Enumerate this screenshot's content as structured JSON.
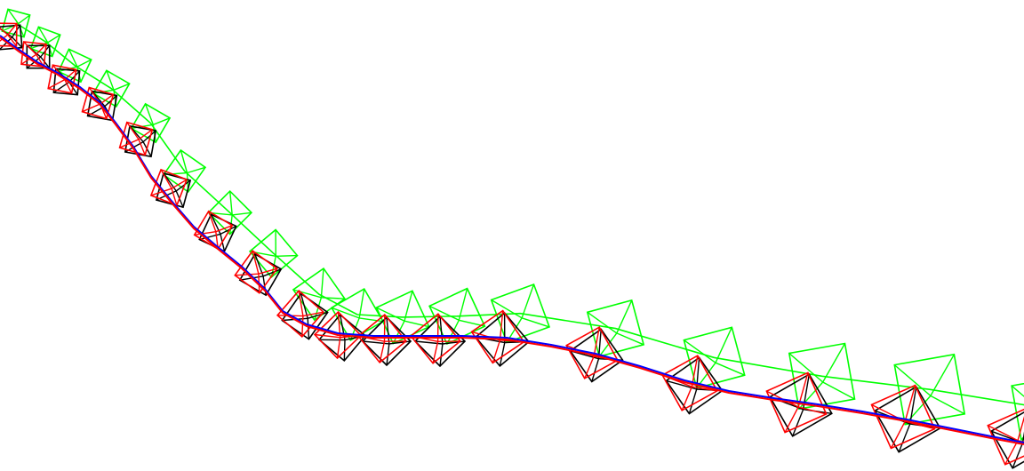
{
  "colors": {
    "background": "#ffffff",
    "trajectory_a": "#0000ff",
    "trajectory_b": "#ff0000",
    "frustum_ground_truth": "#000000",
    "frustum_estimate_a": "#ff0000",
    "frustum_estimate_b": "#00ff00"
  },
  "legend": {
    "visible": false
  },
  "labels": []
}
